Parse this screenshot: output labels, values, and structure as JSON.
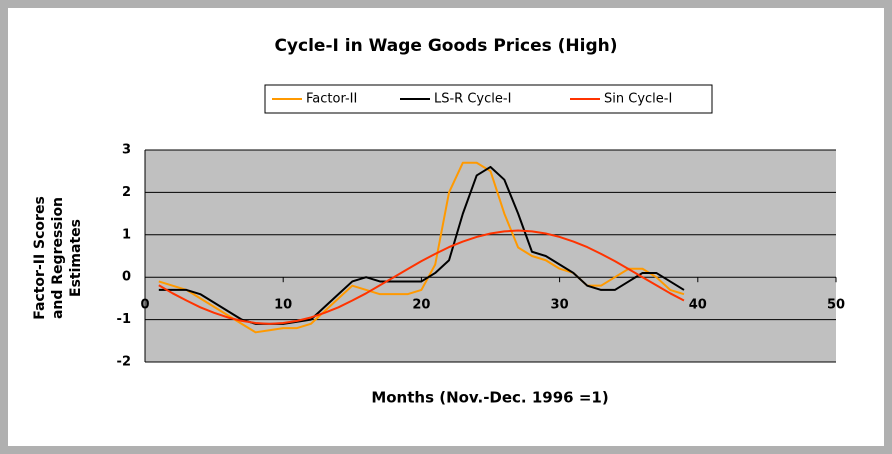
{
  "chart_data": {
    "type": "line",
    "title": "Cycle-I in Wage Goods Prices (High)",
    "x_label": "Months (Nov.-Dec. 1996 =1)",
    "y_label": [
      "Factor-II Scores",
      "and Regression",
      "Estimates"
    ],
    "x": [
      1,
      2,
      3,
      4,
      5,
      6,
      7,
      8,
      9,
      10,
      11,
      12,
      13,
      14,
      15,
      16,
      17,
      18,
      19,
      20,
      21,
      22,
      23,
      24,
      25,
      26,
      27,
      28,
      29,
      30,
      31,
      32,
      33,
      34,
      35,
      36,
      37,
      38,
      39
    ],
    "series": [
      {
        "name": "Factor-II",
        "color": "#ff9900",
        "values": [
          -0.1,
          -0.2,
          -0.3,
          -0.5,
          -0.7,
          -0.9,
          -1.1,
          -1.3,
          -1.25,
          -1.2,
          -1.2,
          -1.1,
          -0.8,
          -0.5,
          -0.2,
          -0.3,
          -0.4,
          -0.4,
          -0.4,
          -0.3,
          0.3,
          2.0,
          2.7,
          2.7,
          2.5,
          1.5,
          0.7,
          0.5,
          0.4,
          0.2,
          0.1,
          -0.2,
          -0.2,
          0,
          0.2,
          0.2,
          0,
          -0.3,
          -0.4
        ]
      },
      {
        "name": "LS-R Cycle-I",
        "color": "#000000",
        "values": [
          -0.3,
          -0.3,
          -0.3,
          -0.4,
          -0.6,
          -0.8,
          -1.0,
          -1.1,
          -1.1,
          -1.1,
          -1.05,
          -1.0,
          -0.7,
          -0.4,
          -0.1,
          0,
          -0.1,
          -0.1,
          -0.1,
          -0.1,
          0.1,
          0.4,
          1.5,
          2.4,
          2.6,
          2.3,
          1.5,
          0.6,
          0.5,
          0.3,
          0.1,
          -0.2,
          -0.3,
          -0.3,
          -0.1,
          0.1,
          0.1,
          -0.1,
          -0.3
        ]
      },
      {
        "name": "Sin Cycle-I",
        "color": "#ff3300",
        "values": [
          -0.19,
          -0.38,
          -0.55,
          -0.71,
          -0.84,
          -0.95,
          -1.03,
          -1.08,
          -1.1,
          -1.08,
          -1.03,
          -0.95,
          -0.84,
          -0.71,
          -0.55,
          -0.38,
          -0.19,
          0,
          0.19,
          0.38,
          0.55,
          0.71,
          0.84,
          0.95,
          1.03,
          1.08,
          1.1,
          1.08,
          1.03,
          0.95,
          0.84,
          0.71,
          0.55,
          0.38,
          0.19,
          0,
          -0.19,
          -0.38,
          -0.55
        ]
      }
    ],
    "xlim": [
      0,
      50
    ],
    "xticks": [
      0,
      10,
      20,
      30,
      40,
      50
    ],
    "ylim": [
      -2,
      3
    ],
    "yticks": [
      -2,
      -1,
      0,
      1,
      2,
      3
    ],
    "grid": true,
    "plot_background": "#c0c0c0"
  }
}
